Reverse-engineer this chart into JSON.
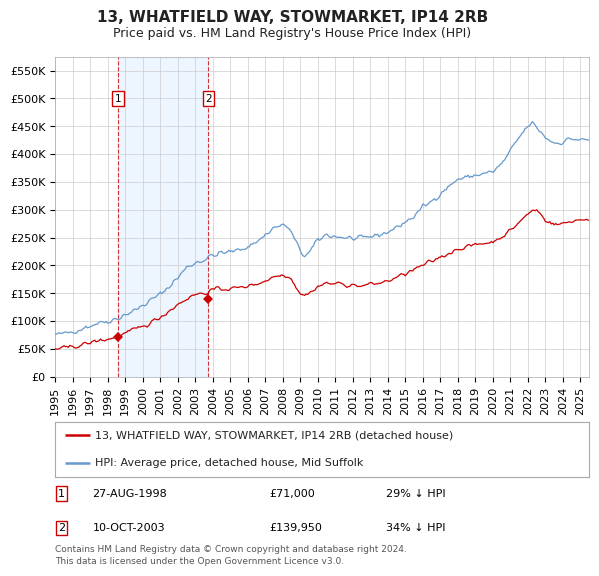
{
  "title": "13, WHATFIELD WAY, STOWMARKET, IP14 2RB",
  "subtitle": "Price paid vs. HM Land Registry's House Price Index (HPI)",
  "legend_line1": "13, WHATFIELD WAY, STOWMARKET, IP14 2RB (detached house)",
  "legend_line2": "HPI: Average price, detached house, Mid Suffolk",
  "t1_date_label": "27-AUG-1998",
  "t2_date_label": "10-OCT-2003",
  "t1_price_label": "£71,000",
  "t2_price_label": "£139,950",
  "t1_pct_label": "29% ↓ HPI",
  "t2_pct_label": "34% ↓ HPI",
  "t1_price": 71000,
  "t2_price": 139950,
  "t1_year": 1998,
  "t1_month": 8,
  "t2_year": 2003,
  "t2_month": 10,
  "footer_line1": "Contains HM Land Registry data © Crown copyright and database right 2024.",
  "footer_line2": "This data is licensed under the Open Government Licence v3.0.",
  "red_color": "#cc0000",
  "blue_color": "#6699cc",
  "shade_color": "#ddeeff",
  "grid_color": "#cccccc",
  "background_color": "#ffffff",
  "label_box_color": "#cc0000",
  "yticks": [
    0,
    50000,
    100000,
    150000,
    200000,
    250000,
    300000,
    350000,
    400000,
    450000,
    500000,
    550000
  ],
  "ylim_max": 575000,
  "xmin": 1995.0,
  "xmax": 2025.5,
  "title_fontsize": 11,
  "subtitle_fontsize": 9,
  "axis_fontsize": 8,
  "legend_fontsize": 8,
  "ann_fontsize": 8,
  "footer_fontsize": 6.5
}
